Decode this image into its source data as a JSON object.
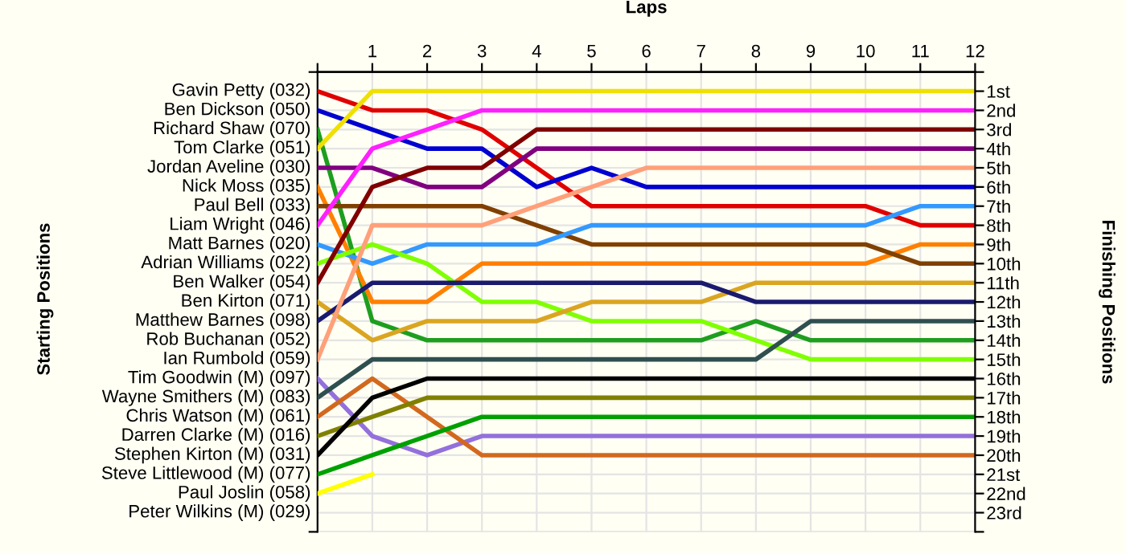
{
  "chart_data": {
    "type": "line",
    "xlabel": "Laps",
    "y2label": "Finishing Positions",
    "legend": "left",
    "annotations": [
      "Starting Positions",
      "Rob Buchanan (052)",
      "Peter Wilkins (M) (029)"
    ],
    "x": [
      0,
      1,
      2,
      3,
      4,
      5,
      6,
      7,
      8,
      9,
      10,
      11,
      12
    ],
    "xlim": [
      0,
      12
    ],
    "xticks": [
      {
        "value": 0,
        "label": null
      },
      1,
      2,
      3,
      4,
      5,
      6,
      7,
      8,
      9,
      10,
      11,
      12
    ],
    "y2lim": [
      24,
      0
    ],
    "y2ticks": [
      {
        "value": 0,
        "label": null
      },
      {
        "value": 1,
        "label": "1st"
      },
      {
        "value": 2,
        "label": "2nd"
      },
      {
        "value": 3,
        "label": "3rd"
      },
      {
        "value": 4,
        "label": "4th"
      },
      {
        "value": 5,
        "label": "5th"
      },
      {
        "value": 6,
        "label": "6th"
      },
      {
        "value": 7,
        "label": "7th"
      },
      {
        "value": 8,
        "label": "8th"
      },
      {
        "value": 9,
        "label": "9th"
      },
      {
        "value": 10,
        "label": "10th"
      },
      {
        "value": 11,
        "label": "11th"
      },
      {
        "value": 12,
        "label": "12th"
      },
      {
        "value": 13,
        "label": "13th"
      },
      {
        "value": 14,
        "label": "14th"
      },
      {
        "value": 15,
        "label": "15th"
      },
      {
        "value": 16,
        "label": "16th"
      },
      {
        "value": 17,
        "label": "17th"
      },
      {
        "value": 18,
        "label": "18th"
      },
      {
        "value": 19,
        "label": "19th"
      },
      {
        "value": 20,
        "label": "20th"
      },
      {
        "value": 21,
        "label": "21st"
      },
      {
        "value": 22,
        "label": "22nd"
      },
      {
        "value": 23,
        "label": "23rd"
      },
      {
        "value": 24,
        "label": null
      }
    ],
    "grid": true,
    "marker": "none",
    "line_style": "solid",
    "series": [
      {
        "name": "Gavin Petty (032)",
        "axis": "y2",
        "color": "#e00000",
        "values": [
          1,
          2,
          2,
          3,
          5,
          7,
          7,
          7,
          7,
          7,
          7,
          8,
          8
        ]
      },
      {
        "name": "Ben Dickson (050)",
        "axis": "y2",
        "color": "#0000d0",
        "values": [
          2,
          3,
          4,
          4,
          6,
          5,
          6,
          6,
          6,
          6,
          6,
          6,
          6
        ]
      },
      {
        "name": "Richard Shaw (070)",
        "axis": "y2",
        "color": "#1e9e1e",
        "values": [
          3,
          13,
          14,
          14,
          14,
          14,
          14,
          14,
          13,
          14,
          14,
          14,
          14
        ]
      },
      {
        "name": "Tom Clarke (051)",
        "axis": "y2",
        "color": "#f0e000",
        "values": [
          4,
          1,
          1,
          1,
          1,
          1,
          1,
          1,
          1,
          1,
          1,
          1,
          1
        ]
      },
      {
        "name": "Jordan Aveline (030)",
        "axis": "y2",
        "color": "#800080",
        "values": [
          5,
          5,
          6,
          6,
          4,
          4,
          4,
          4,
          4,
          4,
          4,
          4,
          4
        ]
      },
      {
        "name": "Nick Moss (035)",
        "axis": "y2",
        "color": "#ff8000",
        "values": [
          6,
          12,
          12,
          10,
          10,
          10,
          10,
          10,
          10,
          10,
          10,
          9,
          9
        ]
      },
      {
        "name": "Paul Bell (033)",
        "axis": "y2",
        "color": "#804000",
        "values": [
          7,
          7,
          7,
          7,
          8,
          9,
          9,
          9,
          9,
          9,
          9,
          10,
          10
        ]
      },
      {
        "name": "Liam Wright (046)",
        "axis": "y2",
        "color": "#ff20ff",
        "values": [
          8,
          4,
          3,
          2,
          2,
          2,
          2,
          2,
          2,
          2,
          2,
          2,
          2
        ]
      },
      {
        "name": "Matt Barnes (020)",
        "axis": "y2",
        "color": "#3399ff",
        "values": [
          9,
          10,
          9,
          9,
          9,
          8,
          8,
          8,
          8,
          8,
          8,
          7,
          7
        ]
      },
      {
        "name": "Adrian Williams (022)",
        "axis": "y2",
        "color": "#80ff00",
        "values": [
          10,
          9,
          10,
          12,
          12,
          13,
          13,
          13,
          14,
          15,
          15,
          15,
          15
        ]
      },
      {
        "name": "Ben Walker (054)",
        "axis": "y2",
        "color": "#800000",
        "values": [
          11,
          6,
          5,
          5,
          3,
          3,
          3,
          3,
          3,
          3,
          3,
          3,
          3
        ]
      },
      {
        "name": "Ben Kirton (071)",
        "axis": "y2",
        "color": "#daa520",
        "values": [
          12,
          14,
          13,
          13,
          13,
          12,
          12,
          12,
          11,
          11,
          11,
          11,
          11
        ]
      },
      {
        "name": "Matthew Barnes (098)",
        "axis": "y2",
        "color": "#1a1a6e",
        "values": [
          13,
          11,
          11,
          11,
          11,
          11,
          11,
          11,
          12,
          12,
          12,
          12,
          12
        ]
      },
      {
        "name": "Ian Rumbold (059)",
        "axis": "y2",
        "color": "#ffa07a",
        "values": [
          15,
          8,
          8,
          8,
          7,
          6,
          5,
          5,
          5,
          5,
          5,
          5,
          5
        ]
      },
      {
        "name": "Tim Goodwin (M) (097)",
        "axis": "y2",
        "color": "#9370db",
        "values": [
          16,
          19,
          20,
          19,
          19,
          19,
          19,
          19,
          19,
          19,
          19,
          19,
          19
        ]
      },
      {
        "name": "Wayne Smithers (M) (083)",
        "axis": "y2",
        "color": "#2f4f4f",
        "values": [
          17,
          15,
          15,
          15,
          15,
          15,
          15,
          15,
          15,
          13,
          13,
          13,
          13
        ]
      },
      {
        "name": "Chris Watson (M) (061)",
        "axis": "y2",
        "color": "#d2691e",
        "values": [
          18,
          16,
          18,
          20,
          20,
          20,
          20,
          20,
          20,
          20,
          20,
          20,
          20
        ]
      },
      {
        "name": "Darren Clarke (M) (016)",
        "axis": "y2",
        "color": "#808000",
        "values": [
          19,
          18,
          17,
          17,
          17,
          17,
          17,
          17,
          17,
          17,
          17,
          17,
          17
        ]
      },
      {
        "name": "Stephen Kirton (M) (031)",
        "axis": "y2",
        "color": "#000000",
        "values": [
          20,
          17,
          16,
          16,
          16,
          16,
          16,
          16,
          16,
          16,
          16,
          16,
          16
        ]
      },
      {
        "name": "Steve Littlewood (M) (077)",
        "axis": "y2",
        "color": "#00a000",
        "values": [
          21,
          20,
          19,
          18,
          18,
          18,
          18,
          18,
          18,
          18,
          18,
          18,
          18
        ]
      },
      {
        "name": "Paul Joslin (058)",
        "axis": "y2",
        "color": "#ffff00",
        "values": [
          22,
          21,
          null,
          null,
          null,
          null,
          null,
          null,
          null,
          null,
          null,
          null,
          null
        ]
      }
    ]
  }
}
